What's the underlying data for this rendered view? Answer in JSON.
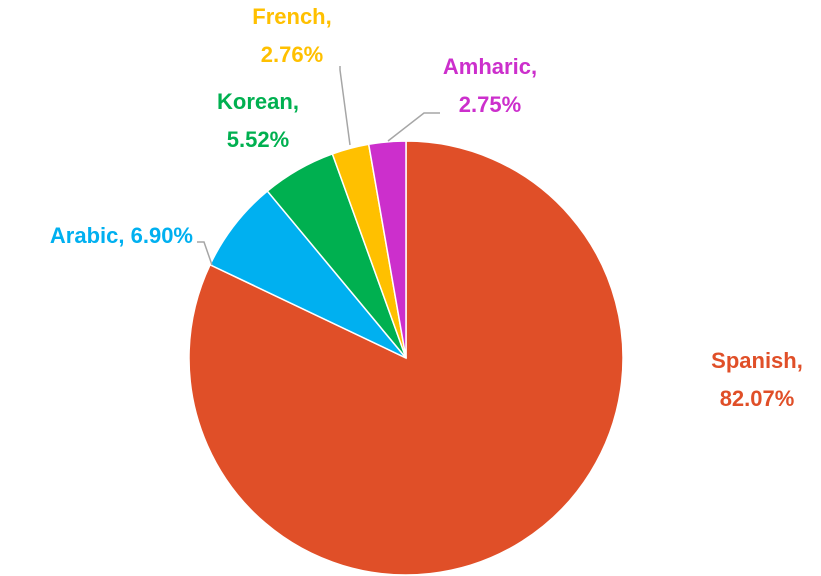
{
  "chart_data": {
    "type": "pie",
    "values": [
      82.07,
      6.9,
      5.52,
      2.76,
      2.75
    ],
    "value_labels": [
      "Spanish,\n82.07%",
      "Arabic, 6.90%",
      "Korean,\n5.52%",
      "French,\n2.76%",
      "Amharic,\n2.75%"
    ],
    "colors": [
      "#e04f28",
      "#00b0f0",
      "#00b050",
      "#ffc000",
      "#cc2fcc"
    ]
  }
}
